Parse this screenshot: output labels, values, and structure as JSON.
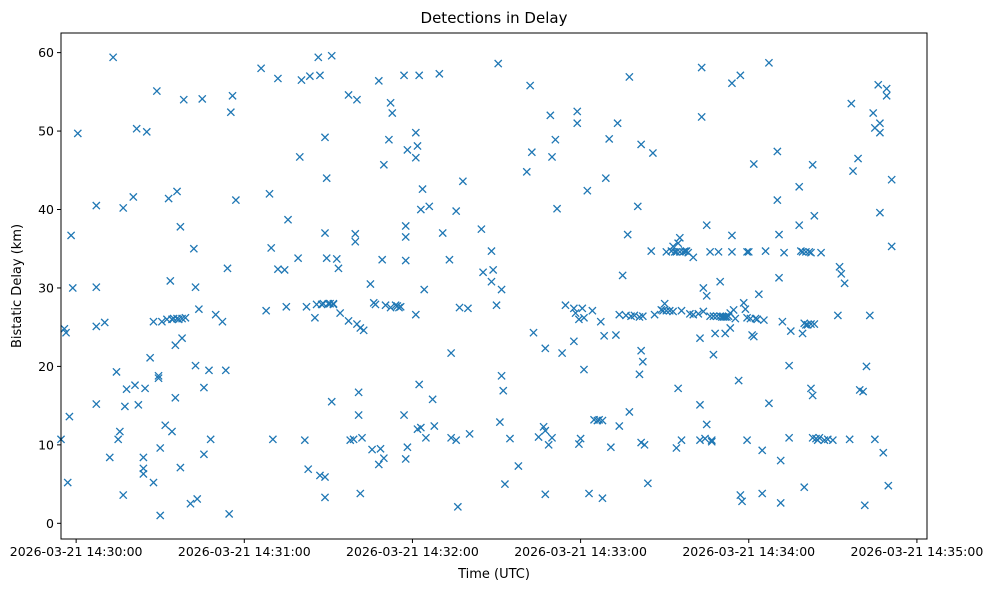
{
  "chart_data": {
    "type": "scatter",
    "title": "Detections in Delay",
    "xlabel": "Time (UTC)",
    "ylabel": "Bistatic Delay (km)",
    "x_units": "minutes since 2026-03-21 14:30:00",
    "xlim": [
      -0.09,
      5.06
    ],
    "ylim": [
      -2.0,
      62.5
    ],
    "xticks": [
      {
        "value": 0,
        "label": "2026-03-21 14:30:00"
      },
      {
        "value": 1,
        "label": "2026-03-21 14:31:00"
      },
      {
        "value": 2,
        "label": "2026-03-21 14:32:00"
      },
      {
        "value": 3,
        "label": "2026-03-21 14:33:00"
      },
      {
        "value": 4,
        "label": "2026-03-21 14:34:00"
      },
      {
        "value": 5,
        "label": "2026-03-21 14:35:00"
      }
    ],
    "yticks": [
      {
        "value": 0,
        "label": "0"
      },
      {
        "value": 10,
        "label": "10"
      },
      {
        "value": 20,
        "label": "20"
      },
      {
        "value": 30,
        "label": "30"
      },
      {
        "value": 40,
        "label": "40"
      },
      {
        "value": 50,
        "label": "50"
      },
      {
        "value": 60,
        "label": "60"
      }
    ],
    "marker": "x",
    "color": "#1f77b4",
    "points": [
      [
        -0.09,
        10.7
      ],
      [
        -0.07,
        24.8
      ],
      [
        -0.06,
        24.3
      ],
      [
        -0.05,
        5.2
      ],
      [
        -0.04,
        13.6
      ],
      [
        -0.03,
        36.7
      ],
      [
        -0.02,
        30.0
      ],
      [
        0.01,
        49.7
      ],
      [
        0.12,
        40.5
      ],
      [
        0.12,
        30.1
      ],
      [
        0.12,
        25.1
      ],
      [
        0.12,
        15.2
      ],
      [
        0.17,
        25.6
      ],
      [
        0.2,
        8.4
      ],
      [
        0.22,
        59.4
      ],
      [
        0.24,
        19.3
      ],
      [
        0.25,
        10.7
      ],
      [
        0.26,
        11.7
      ],
      [
        0.28,
        40.2
      ],
      [
        0.28,
        3.6
      ],
      [
        0.29,
        14.9
      ],
      [
        0.3,
        17.1
      ],
      [
        0.34,
        41.6
      ],
      [
        0.35,
        17.6
      ],
      [
        0.36,
        50.3
      ],
      [
        0.37,
        15.1
      ],
      [
        0.4,
        8.4
      ],
      [
        0.4,
        7.0
      ],
      [
        0.4,
        6.3
      ],
      [
        0.41,
        17.2
      ],
      [
        0.42,
        49.9
      ],
      [
        0.44,
        21.1
      ],
      [
        0.46,
        5.2
      ],
      [
        0.46,
        25.7
      ],
      [
        0.48,
        55.1
      ],
      [
        0.49,
        18.5
      ],
      [
        0.49,
        18.8
      ],
      [
        0.5,
        9.6
      ],
      [
        0.5,
        1.0
      ],
      [
        0.51,
        25.7
      ],
      [
        0.53,
        12.5
      ],
      [
        0.54,
        26.0
      ],
      [
        0.55,
        41.4
      ],
      [
        0.56,
        30.9
      ],
      [
        0.57,
        26.0
      ],
      [
        0.57,
        11.7
      ],
      [
        0.58,
        26.1
      ],
      [
        0.59,
        22.7
      ],
      [
        0.59,
        16.0
      ],
      [
        0.6,
        42.3
      ],
      [
        0.6,
        26.1
      ],
      [
        0.61,
        26.0
      ],
      [
        0.62,
        7.1
      ],
      [
        0.62,
        37.8
      ],
      [
        0.63,
        23.6
      ],
      [
        0.63,
        26.1
      ],
      [
        0.64,
        54.0
      ],
      [
        0.65,
        26.2
      ],
      [
        0.68,
        2.5
      ],
      [
        0.7,
        35.0
      ],
      [
        0.71,
        30.1
      ],
      [
        0.71,
        20.1
      ],
      [
        0.72,
        3.1
      ],
      [
        0.73,
        27.3
      ],
      [
        0.75,
        54.1
      ],
      [
        0.76,
        8.8
      ],
      [
        0.76,
        17.3
      ],
      [
        0.79,
        19.5
      ],
      [
        0.8,
        10.7
      ],
      [
        0.83,
        26.6
      ],
      [
        0.87,
        25.7
      ],
      [
        0.89,
        19.5
      ],
      [
        0.9,
        32.5
      ],
      [
        0.91,
        1.2
      ],
      [
        0.92,
        52.4
      ],
      [
        0.93,
        54.5
      ],
      [
        0.95,
        41.2
      ],
      [
        1.1,
        58.0
      ],
      [
        1.13,
        27.1
      ],
      [
        1.15,
        42.0
      ],
      [
        1.16,
        35.1
      ],
      [
        1.17,
        10.7
      ],
      [
        1.2,
        56.7
      ],
      [
        1.2,
        32.4
      ],
      [
        1.24,
        32.3
      ],
      [
        1.25,
        27.6
      ],
      [
        1.26,
        38.7
      ],
      [
        1.32,
        33.8
      ],
      [
        1.33,
        46.7
      ],
      [
        1.34,
        56.5
      ],
      [
        1.36,
        10.6
      ],
      [
        1.37,
        27.6
      ],
      [
        1.38,
        6.9
      ],
      [
        1.39,
        57.0
      ],
      [
        1.42,
        26.2
      ],
      [
        1.43,
        27.9
      ],
      [
        1.44,
        59.4
      ],
      [
        1.45,
        57.1
      ],
      [
        1.45,
        6.1
      ],
      [
        1.46,
        27.9
      ],
      [
        1.47,
        28.0
      ],
      [
        1.48,
        49.2
      ],
      [
        1.48,
        37.0
      ],
      [
        1.48,
        5.9
      ],
      [
        1.48,
        3.3
      ],
      [
        1.49,
        44.0
      ],
      [
        1.49,
        33.8
      ],
      [
        1.5,
        28.0
      ],
      [
        1.51,
        28.0
      ],
      [
        1.52,
        59.6
      ],
      [
        1.52,
        15.5
      ],
      [
        1.53,
        28.0
      ],
      [
        1.53,
        27.9
      ],
      [
        1.55,
        33.7
      ],
      [
        1.56,
        32.5
      ],
      [
        1.57,
        26.8
      ],
      [
        1.62,
        54.6
      ],
      [
        1.62,
        25.8
      ],
      [
        1.63,
        10.6
      ],
      [
        1.65,
        10.7
      ],
      [
        1.66,
        36.9
      ],
      [
        1.66,
        35.9
      ],
      [
        1.67,
        54.0
      ],
      [
        1.67,
        25.4
      ],
      [
        1.68,
        13.8
      ],
      [
        1.68,
        16.7
      ],
      [
        1.69,
        24.9
      ],
      [
        1.69,
        3.8
      ],
      [
        1.7,
        10.9
      ],
      [
        1.71,
        24.6
      ],
      [
        1.75,
        30.5
      ],
      [
        1.76,
        9.4
      ],
      [
        1.77,
        28.1
      ],
      [
        1.78,
        27.9
      ],
      [
        1.8,
        56.4
      ],
      [
        1.8,
        7.5
      ],
      [
        1.81,
        9.5
      ],
      [
        1.82,
        33.6
      ],
      [
        1.83,
        45.7
      ],
      [
        1.83,
        8.3
      ],
      [
        1.84,
        27.8
      ],
      [
        1.86,
        48.9
      ],
      [
        1.87,
        53.6
      ],
      [
        1.87,
        27.5
      ],
      [
        1.88,
        52.3
      ],
      [
        1.9,
        27.8
      ],
      [
        1.91,
        27.7
      ],
      [
        1.92,
        27.5
      ],
      [
        1.93,
        27.6
      ],
      [
        1.95,
        57.1
      ],
      [
        1.95,
        13.8
      ],
      [
        1.96,
        37.9
      ],
      [
        1.96,
        36.5
      ],
      [
        1.96,
        33.5
      ],
      [
        1.96,
        8.2
      ],
      [
        1.97,
        47.6
      ],
      [
        1.97,
        9.7
      ],
      [
        2.02,
        49.8
      ],
      [
        2.02,
        46.6
      ],
      [
        2.02,
        26.6
      ],
      [
        2.03,
        48.1
      ],
      [
        2.03,
        12.0
      ],
      [
        2.04,
        57.1
      ],
      [
        2.04,
        17.7
      ],
      [
        2.05,
        40.0
      ],
      [
        2.05,
        12.2
      ],
      [
        2.06,
        42.6
      ],
      [
        2.07,
        29.8
      ],
      [
        2.08,
        10.9
      ],
      [
        2.1,
        40.4
      ],
      [
        2.12,
        15.8
      ],
      [
        2.13,
        12.4
      ],
      [
        2.16,
        57.3
      ],
      [
        2.18,
        37.0
      ],
      [
        2.22,
        33.6
      ],
      [
        2.23,
        21.7
      ],
      [
        2.23,
        10.9
      ],
      [
        2.26,
        39.8
      ],
      [
        2.26,
        10.6
      ],
      [
        2.27,
        2.1
      ],
      [
        2.28,
        27.5
      ],
      [
        2.3,
        43.6
      ],
      [
        2.33,
        27.4
      ],
      [
        2.34,
        11.4
      ],
      [
        2.41,
        37.5
      ],
      [
        2.42,
        32.0
      ],
      [
        2.47,
        34.7
      ],
      [
        2.47,
        30.8
      ],
      [
        2.48,
        32.3
      ],
      [
        2.5,
        27.8
      ],
      [
        2.51,
        58.6
      ],
      [
        2.52,
        12.9
      ],
      [
        2.53,
        29.8
      ],
      [
        2.53,
        18.8
      ],
      [
        2.54,
        16.9
      ],
      [
        2.55,
        5.0
      ],
      [
        2.58,
        10.8
      ],
      [
        2.63,
        7.3
      ],
      [
        2.68,
        44.8
      ],
      [
        2.7,
        55.8
      ],
      [
        2.71,
        47.3
      ],
      [
        2.72,
        24.3
      ],
      [
        2.75,
        11.0
      ],
      [
        2.78,
        12.3
      ],
      [
        2.79,
        22.3
      ],
      [
        2.79,
        11.8
      ],
      [
        2.79,
        3.7
      ],
      [
        2.81,
        10.0
      ],
      [
        2.82,
        52.0
      ],
      [
        2.83,
        10.9
      ],
      [
        2.83,
        46.7
      ],
      [
        2.85,
        48.9
      ],
      [
        2.86,
        40.1
      ],
      [
        2.89,
        21.7
      ],
      [
        2.91,
        27.8
      ],
      [
        2.96,
        27.4
      ],
      [
        2.96,
        23.2
      ],
      [
        2.97,
        26.8
      ],
      [
        2.98,
        52.5
      ],
      [
        2.98,
        51.0
      ],
      [
        2.99,
        26.0
      ],
      [
        2.99,
        10.1
      ],
      [
        3.0,
        10.8
      ],
      [
        3.01,
        27.4
      ],
      [
        3.02,
        19.6
      ],
      [
        3.02,
        26.2
      ],
      [
        3.04,
        42.4
      ],
      [
        3.05,
        3.8
      ],
      [
        3.07,
        27.1
      ],
      [
        3.08,
        13.2
      ],
      [
        3.1,
        13.1
      ],
      [
        3.11,
        13.2
      ],
      [
        3.12,
        25.7
      ],
      [
        3.13,
        13.1
      ],
      [
        3.13,
        3.2
      ],
      [
        3.14,
        23.9
      ],
      [
        3.15,
        44.0
      ],
      [
        3.17,
        49.0
      ],
      [
        3.18,
        9.7
      ],
      [
        3.21,
        24.0
      ],
      [
        3.22,
        51.0
      ],
      [
        3.23,
        26.6
      ],
      [
        3.23,
        12.4
      ],
      [
        3.25,
        31.6
      ],
      [
        3.27,
        26.5
      ],
      [
        3.28,
        36.8
      ],
      [
        3.29,
        56.9
      ],
      [
        3.29,
        14.2
      ],
      [
        3.3,
        26.4
      ],
      [
        3.32,
        26.5
      ],
      [
        3.34,
        40.4
      ],
      [
        3.35,
        19.0
      ],
      [
        3.35,
        26.3
      ],
      [
        3.36,
        48.3
      ],
      [
        3.36,
        22.0
      ],
      [
        3.36,
        10.3
      ],
      [
        3.37,
        20.6
      ],
      [
        3.37,
        26.4
      ],
      [
        3.38,
        10.0
      ],
      [
        3.4,
        5.1
      ],
      [
        3.43,
        47.2
      ],
      [
        3.42,
        34.7
      ],
      [
        3.44,
        26.6
      ],
      [
        3.48,
        27.2
      ],
      [
        3.49,
        27.1
      ],
      [
        3.5,
        28.0
      ],
      [
        3.51,
        27.1
      ],
      [
        3.51,
        34.6
      ],
      [
        3.53,
        27.1
      ],
      [
        3.54,
        34.7
      ],
      [
        3.55,
        35.3
      ],
      [
        3.55,
        27.0
      ],
      [
        3.56,
        34.6
      ],
      [
        3.57,
        34.6
      ],
      [
        3.57,
        9.6
      ],
      [
        3.58,
        35.7
      ],
      [
        3.58,
        17.2
      ],
      [
        3.59,
        34.6
      ],
      [
        3.59,
        36.4
      ],
      [
        3.6,
        27.1
      ],
      [
        3.6,
        10.6
      ],
      [
        3.61,
        34.6
      ],
      [
        3.62,
        34.7
      ],
      [
        3.63,
        34.7
      ],
      [
        3.64,
        34.5
      ],
      [
        3.65,
        26.7
      ],
      [
        3.67,
        26.6
      ],
      [
        3.67,
        33.9
      ],
      [
        3.7,
        26.7
      ],
      [
        3.71,
        23.6
      ],
      [
        3.71,
        15.1
      ],
      [
        3.71,
        10.6
      ],
      [
        3.72,
        58.1
      ],
      [
        3.72,
        51.8
      ],
      [
        3.73,
        30.0
      ],
      [
        3.73,
        27.0
      ],
      [
        3.74,
        10.8
      ],
      [
        3.75,
        38.0
      ],
      [
        3.75,
        29.0
      ],
      [
        3.75,
        12.6
      ],
      [
        3.77,
        34.6
      ],
      [
        3.77,
        26.4
      ],
      [
        3.78,
        10.6
      ],
      [
        3.78,
        10.4
      ],
      [
        3.79,
        21.5
      ],
      [
        3.79,
        26.4
      ],
      [
        3.8,
        24.2
      ],
      [
        3.81,
        26.4
      ],
      [
        3.82,
        34.6
      ],
      [
        3.83,
        30.8
      ],
      [
        3.83,
        26.4
      ],
      [
        3.84,
        26.3
      ],
      [
        3.85,
        26.3
      ],
      [
        3.86,
        24.2
      ],
      [
        3.86,
        26.3
      ],
      [
        3.87,
        26.3
      ],
      [
        3.88,
        26.4
      ],
      [
        3.89,
        24.9
      ],
      [
        3.89,
        26.8
      ],
      [
        3.9,
        36.7
      ],
      [
        3.9,
        56.1
      ],
      [
        3.9,
        34.6
      ],
      [
        3.91,
        27.2
      ],
      [
        3.92,
        26.1
      ],
      [
        3.94,
        18.2
      ],
      [
        3.95,
        57.1
      ],
      [
        3.95,
        3.6
      ],
      [
        3.96,
        2.8
      ],
      [
        3.97,
        28.1
      ],
      [
        3.98,
        27.3
      ],
      [
        3.99,
        26.2
      ],
      [
        3.99,
        34.6
      ],
      [
        3.99,
        10.6
      ],
      [
        4.0,
        34.6
      ],
      [
        4.01,
        26.1
      ],
      [
        4.02,
        24.0
      ],
      [
        4.03,
        23.8
      ],
      [
        4.03,
        45.8
      ],
      [
        4.04,
        26.1
      ],
      [
        4.05,
        26.0
      ],
      [
        4.06,
        29.2
      ],
      [
        4.08,
        9.3
      ],
      [
        4.08,
        3.8
      ],
      [
        4.09,
        25.9
      ],
      [
        4.1,
        34.7
      ],
      [
        4.12,
        58.7
      ],
      [
        4.12,
        15.3
      ],
      [
        4.17,
        47.4
      ],
      [
        4.17,
        41.2
      ],
      [
        4.18,
        36.8
      ],
      [
        4.18,
        31.3
      ],
      [
        4.19,
        8.0
      ],
      [
        4.19,
        2.6
      ],
      [
        4.2,
        25.7
      ],
      [
        4.21,
        34.5
      ],
      [
        4.24,
        20.1
      ],
      [
        4.24,
        10.9
      ],
      [
        4.25,
        24.5
      ],
      [
        4.3,
        38.0
      ],
      [
        4.3,
        42.9
      ],
      [
        4.31,
        34.7
      ],
      [
        4.32,
        34.6
      ],
      [
        4.32,
        24.2
      ],
      [
        4.33,
        25.5
      ],
      [
        4.33,
        4.6
      ],
      [
        4.34,
        34.6
      ],
      [
        4.34,
        25.3
      ],
      [
        4.35,
        25.3
      ],
      [
        4.36,
        34.6
      ],
      [
        4.37,
        34.5
      ],
      [
        4.37,
        25.4
      ],
      [
        4.37,
        17.2
      ],
      [
        4.38,
        16.3
      ],
      [
        4.38,
        45.7
      ],
      [
        4.38,
        10.9
      ],
      [
        4.39,
        39.2
      ],
      [
        4.39,
        25.4
      ],
      [
        4.4,
        10.8
      ],
      [
        4.41,
        10.6
      ],
      [
        4.42,
        10.9
      ],
      [
        4.43,
        34.5
      ],
      [
        4.45,
        10.6
      ],
      [
        4.47,
        10.7
      ],
      [
        4.5,
        10.6
      ],
      [
        4.53,
        26.5
      ],
      [
        4.54,
        32.7
      ],
      [
        4.55,
        31.8
      ],
      [
        4.57,
        30.6
      ],
      [
        4.6,
        10.7
      ],
      [
        4.61,
        53.5
      ],
      [
        4.62,
        44.9
      ],
      [
        4.65,
        46.5
      ],
      [
        4.66,
        17.0
      ],
      [
        4.68,
        16.8
      ],
      [
        4.69,
        2.3
      ],
      [
        4.7,
        20.0
      ],
      [
        4.72,
        26.5
      ],
      [
        4.74,
        52.3
      ],
      [
        4.75,
        50.4
      ],
      [
        4.75,
        10.7
      ],
      [
        4.77,
        55.9
      ],
      [
        4.78,
        51.0
      ],
      [
        4.78,
        49.8
      ],
      [
        4.78,
        39.6
      ],
      [
        4.8,
        9.0
      ],
      [
        4.82,
        55.4
      ],
      [
        4.82,
        54.5
      ],
      [
        4.83,
        4.8
      ],
      [
        4.85,
        43.8
      ],
      [
        4.85,
        35.3
      ]
    ]
  }
}
